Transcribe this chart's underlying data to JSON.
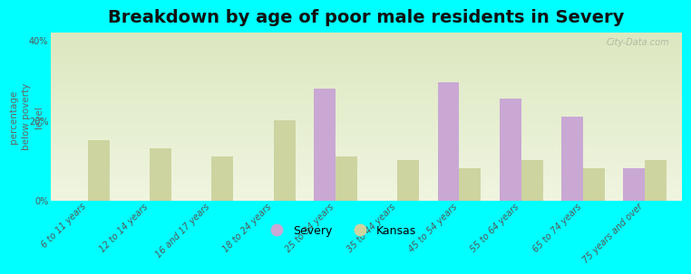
{
  "title": "Breakdown by age of poor male residents in Severy",
  "categories": [
    "6 to 11 years",
    "12 to 14 years",
    "16 and 17 years",
    "18 to 24 years",
    "25 to 34 years",
    "35 to 44 years",
    "45 to 54 years",
    "55 to 64 years",
    "65 to 74 years",
    "75 years and over"
  ],
  "severy_values": [
    0,
    0,
    0,
    0,
    28.0,
    0,
    29.5,
    25.5,
    21.0,
    8.0
  ],
  "kansas_values": [
    15.0,
    13.0,
    11.0,
    20.0,
    11.0,
    10.0,
    8.0,
    10.0,
    8.0,
    10.0
  ],
  "severy_color": "#c9a8d4",
  "kansas_color": "#cdd4a0",
  "background_color": "#00ffff",
  "plot_bg_gradient_top": "#dce8c0",
  "plot_bg_gradient_bottom": "#f0f5e0",
  "ylabel": "percentage\nbelow poverty\nlevel",
  "ylim": [
    0,
    42
  ],
  "yticks": [
    0,
    20,
    40
  ],
  "ytick_labels": [
    "0%",
    "20%",
    "40%"
  ],
  "title_fontsize": 14,
  "axis_label_fontsize": 7.5,
  "tick_label_fontsize": 7,
  "legend_fontsize": 9,
  "watermark": "City-Data.com"
}
